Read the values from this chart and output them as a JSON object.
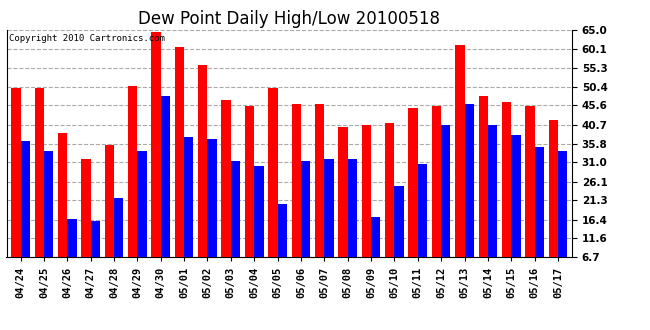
{
  "title": "Dew Point Daily High/Low 20100518",
  "copyright": "Copyright 2010 Cartronics.com",
  "dates": [
    "04/24",
    "04/25",
    "04/26",
    "04/27",
    "04/28",
    "04/29",
    "04/30",
    "05/01",
    "05/02",
    "05/03",
    "05/04",
    "05/05",
    "05/06",
    "05/07",
    "05/08",
    "05/09",
    "05/10",
    "05/11",
    "05/12",
    "05/13",
    "05/14",
    "05/15",
    "05/16",
    "05/17"
  ],
  "highs": [
    50.0,
    50.0,
    38.5,
    32.0,
    35.5,
    50.5,
    64.5,
    60.5,
    56.0,
    47.0,
    45.5,
    50.0,
    46.0,
    46.0,
    40.0,
    40.5,
    41.0,
    45.0,
    45.5,
    61.0,
    48.0,
    46.5,
    45.5,
    42.0
  ],
  "lows": [
    36.5,
    34.0,
    16.5,
    16.0,
    22.0,
    34.0,
    48.0,
    37.5,
    37.0,
    31.5,
    30.0,
    20.5,
    31.5,
    32.0,
    32.0,
    17.0,
    25.0,
    30.5,
    40.5,
    46.0,
    40.5,
    38.0,
    35.0,
    34.0
  ],
  "high_color": "#FF0000",
  "low_color": "#0000FF",
  "bg_color": "#FFFFFF",
  "plot_bg_color": "#FFFFFF",
  "grid_color": "#AAAAAA",
  "ymin": 6.7,
  "ymax": 65.0,
  "yticks": [
    6.7,
    11.6,
    16.4,
    21.3,
    26.1,
    31.0,
    35.8,
    40.7,
    45.6,
    50.4,
    55.3,
    60.1,
    65.0
  ],
  "title_fontsize": 12,
  "tick_fontsize": 7.5,
  "bar_width": 0.4
}
